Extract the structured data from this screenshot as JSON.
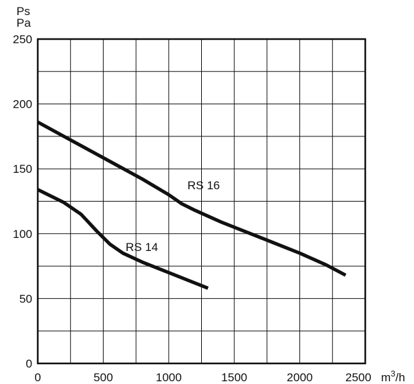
{
  "chart_data": {
    "type": "line",
    "title": "",
    "ylabel": [
      "Ps",
      "Pa"
    ],
    "xlabel_unit": "m³/h",
    "xlim": [
      0,
      2500
    ],
    "ylim": [
      0,
      250
    ],
    "grid": true,
    "x_ticks": [
      "0",
      "500",
      "1000",
      "1500",
      "2000",
      "2500"
    ],
    "y_ticks": [
      "0",
      "50",
      "100",
      "150",
      "200",
      "250"
    ],
    "series": [
      {
        "name": "RS 16",
        "x": [
          0,
          200,
          400,
          600,
          800,
          1000,
          1100,
          1200,
          1400,
          1600,
          1800,
          2000,
          2200,
          2350
        ],
        "y": [
          186,
          175,
          164,
          153,
          142,
          130,
          123,
          118,
          109,
          101,
          93,
          85,
          76,
          68
        ]
      },
      {
        "name": "RS 14",
        "x": [
          0,
          200,
          330,
          450,
          550,
          650,
          800,
          1000,
          1150,
          1300
        ],
        "y": [
          134,
          124,
          115,
          102,
          92,
          85,
          78,
          70,
          64,
          58
        ]
      }
    ]
  }
}
